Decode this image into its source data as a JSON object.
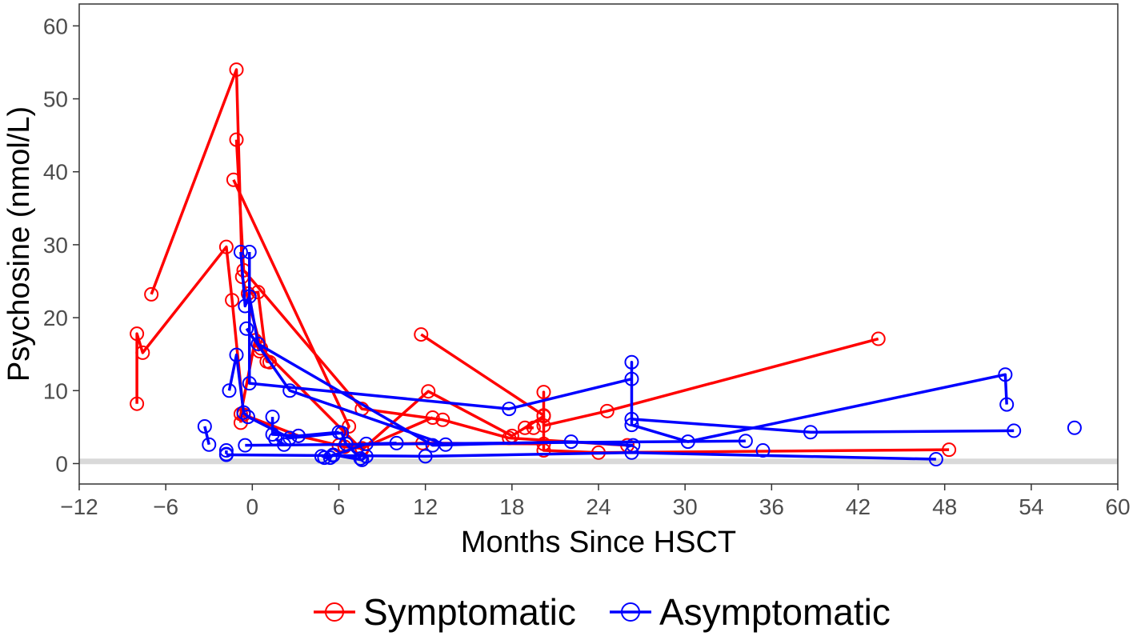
{
  "chart_data": {
    "type": "line",
    "title": "",
    "xlabel": "Months Since HSCT",
    "ylabel": "Psychosine (nmol/L)",
    "xlim": [
      -12,
      60
    ],
    "ylim": [
      -2.8,
      63
    ],
    "xticks": [
      -12,
      -6,
      0,
      6,
      12,
      18,
      24,
      30,
      36,
      42,
      48,
      54,
      60
    ],
    "yticks": [
      0,
      10,
      20,
      30,
      40,
      50,
      60
    ],
    "xtick_labels": [
      "−12",
      "−6",
      "0",
      "6",
      "12",
      "18",
      "24",
      "30",
      "36",
      "42",
      "48",
      "54",
      "60"
    ],
    "ytick_labels": [
      "0",
      "10",
      "20",
      "30",
      "40",
      "50",
      "60"
    ],
    "grid": false,
    "reference_band": {
      "y": 0.3
    },
    "legend": {
      "position": "bottom",
      "entries": [
        {
          "label": "Symptomatic",
          "color": "#ff0000"
        },
        {
          "label": "Asymptomatic",
          "color": "#0000ff"
        }
      ]
    },
    "series": [
      {
        "group": "Symptomatic",
        "color": "#ff0000",
        "points": [
          [
            -8.0,
            8.2
          ],
          [
            -8.0,
            17.8
          ],
          [
            -7.6,
            15.2
          ],
          [
            -1.8,
            29.7
          ],
          [
            -1.4,
            22.4
          ],
          [
            -0.6,
            6.7
          ],
          [
            3.2,
            3.8
          ],
          [
            6.4,
            2.3
          ],
          [
            7.6,
            2.1
          ],
          [
            12.5,
            6.3
          ]
        ]
      },
      {
        "group": "Symptomatic",
        "color": "#ff0000",
        "points": [
          [
            -7.0,
            23.2
          ],
          [
            -1.1,
            54.0
          ],
          [
            -0.7,
            25.6
          ],
          [
            0.6,
            15.8
          ],
          [
            7.6,
            1.9
          ],
          [
            12.2,
            9.9
          ],
          [
            18.0,
            3.8
          ],
          [
            20.2,
            6.5
          ],
          [
            20.2,
            1.8
          ],
          [
            24.0,
            1.5
          ],
          [
            48.3,
            1.9
          ]
        ]
      },
      {
        "group": "Symptomatic",
        "color": "#ff0000",
        "points": [
          [
            -1.1,
            44.4
          ],
          [
            -0.6,
            26.5
          ],
          [
            7.6,
            7.5
          ],
          [
            13.2,
            6.0
          ],
          [
            17.8,
            3.5
          ],
          [
            26.0,
            2.5
          ]
        ]
      },
      {
        "group": "Symptomatic",
        "color": "#ff0000",
        "points": [
          [
            -1.3,
            38.9
          ],
          [
            6.7,
            5.1
          ],
          [
            6.0,
            2.5
          ],
          [
            11.8,
            2.8
          ],
          [
            20.2,
            2.7
          ]
        ]
      },
      {
        "group": "Symptomatic",
        "color": "#ff0000",
        "points": [
          [
            -0.3,
            23.3
          ],
          [
            0.4,
            23.5
          ],
          [
            1.0,
            14.0
          ],
          [
            1.2,
            13.9
          ]
        ]
      },
      {
        "group": "Symptomatic",
        "color": "#ff0000",
        "points": [
          [
            -0.8,
            5.6
          ],
          [
            -0.8,
            6.8
          ],
          [
            0.2,
            16.9
          ],
          [
            0.5,
            15.4
          ]
        ]
      },
      {
        "group": "Symptomatic",
        "color": "#ff0000",
        "points": [
          [
            11.7,
            17.7
          ],
          [
            20.2,
            6.6
          ],
          [
            20.2,
            9.8
          ],
          [
            20.2,
            5.2
          ],
          [
            24.6,
            7.2
          ],
          [
            43.4,
            17.1
          ]
        ]
      },
      {
        "group": "Symptomatic",
        "color": "#ff0000",
        "points": [
          [
            18.9,
            4.9
          ],
          [
            19.5,
            4.9
          ]
        ]
      },
      {
        "group": "Asymptomatic",
        "color": "#0000ff",
        "points": [
          [
            -1.6,
            10.0
          ],
          [
            -1.1,
            14.9
          ],
          [
            -0.6,
            7.0
          ],
          [
            -0.3,
            6.4
          ],
          [
            2.6,
            3.5
          ],
          [
            6.2,
            4.2
          ],
          [
            6.5,
            2.7
          ],
          [
            7.5,
            0.7
          ]
        ]
      },
      {
        "group": "Asymptomatic",
        "color": "#0000ff",
        "points": [
          [
            -0.8,
            29.0
          ],
          [
            -0.5,
            21.6
          ],
          [
            -0.2,
            22.9
          ],
          [
            0.4,
            16.4
          ],
          [
            12.5,
            2.5
          ],
          [
            22.1,
            3.0
          ],
          [
            26.4,
            2.5
          ]
        ]
      },
      {
        "group": "Asymptomatic",
        "color": "#0000ff",
        "points": [
          [
            -0.2,
            29.0
          ],
          [
            -0.2,
            11.0
          ],
          [
            17.8,
            7.5
          ],
          [
            26.3,
            11.6
          ],
          [
            26.3,
            13.9
          ],
          [
            26.3,
            5.3
          ],
          [
            30.2,
            3.0
          ],
          [
            52.2,
            12.2
          ],
          [
            52.3,
            8.1
          ]
        ]
      },
      {
        "group": "Asymptomatic",
        "color": "#0000ff",
        "points": [
          [
            -0.4,
            18.5
          ],
          [
            2.6,
            10.0
          ],
          [
            13.4,
            2.6
          ]
        ]
      },
      {
        "group": "Asymptomatic",
        "color": "#0000ff",
        "points": [
          [
            -3.3,
            5.1
          ],
          [
            -3.0,
            2.6
          ]
        ]
      },
      {
        "group": "Asymptomatic",
        "color": "#0000ff",
        "points": [
          [
            -1.8,
            1.3
          ],
          [
            -1.8,
            1.8
          ]
        ]
      },
      {
        "group": "Asymptomatic",
        "color": "#0000ff",
        "points": [
          [
            -1.8,
            1.2
          ],
          [
            12.0,
            1.0
          ],
          [
            26.3,
            1.5
          ],
          [
            47.4,
            0.6
          ]
        ]
      },
      {
        "group": "Asymptomatic",
        "color": "#0000ff",
        "points": [
          [
            -0.5,
            2.5
          ],
          [
            34.2,
            3.1
          ]
        ]
      },
      {
        "group": "Asymptomatic",
        "color": "#0000ff",
        "points": [
          [
            1.4,
            6.4
          ],
          [
            1.4,
            4.0
          ],
          [
            3.2,
            3.8
          ],
          [
            6.0,
            4.3
          ]
        ]
      },
      {
        "group": "Asymptomatic",
        "color": "#0000ff",
        "points": [
          [
            1.6,
            3.4
          ],
          [
            2.2,
            2.6
          ]
        ]
      },
      {
        "group": "Asymptomatic",
        "color": "#0000ff",
        "points": [
          [
            26.3,
            6.1
          ],
          [
            38.7,
            4.3
          ],
          [
            52.8,
            4.5
          ]
        ]
      },
      {
        "group": "Asymptomatic",
        "color": "#0000ff",
        "points": [
          [
            4.8,
            1.0
          ],
          [
            5.6,
            1.1
          ],
          [
            7.9,
            2.7
          ],
          [
            10.0,
            2.8
          ]
        ]
      },
      {
        "group": "Asymptomatic",
        "color": "#0000ff",
        "points": [
          [
            5.0,
            0.8
          ],
          [
            5.4,
            0.8
          ],
          [
            5.6,
            1.2
          ],
          [
            7.6,
            0.5
          ],
          [
            7.9,
            1.0
          ]
        ]
      },
      {
        "group": "Asymptomatic",
        "color": "#0000ff",
        "points": [
          [
            35.4,
            1.8
          ]
        ]
      },
      {
        "group": "Asymptomatic",
        "color": "#0000ff",
        "points": [
          [
            57.0,
            4.9
          ]
        ]
      }
    ]
  }
}
